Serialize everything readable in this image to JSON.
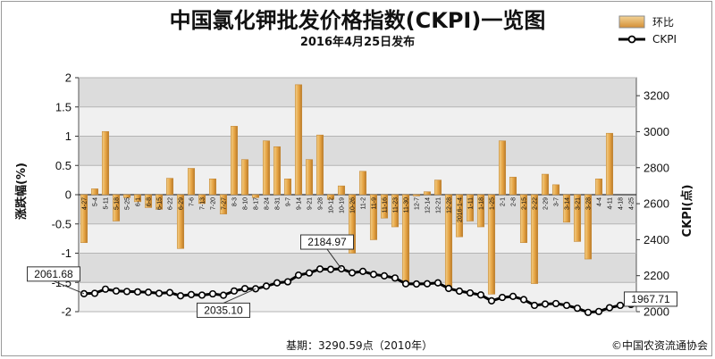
{
  "chart_data": {
    "type": "bar+line",
    "title": "中国氯化钾批发价格指数(CKPI)一览图",
    "subtitle": "2016年4月25日发布",
    "ylabel_left": "涨跌幅(%)",
    "ylabel_right": "CKPI(点)",
    "ylim_left": [
      -2,
      2
    ],
    "ylim_right": [
      2000,
      3300
    ],
    "yticks_left": [
      "2",
      "1.5",
      "1",
      "0.5",
      "0",
      "-0.5",
      "-1",
      "-1.5",
      "-2"
    ],
    "yticks_right": [
      "3200",
      "3000",
      "2800",
      "2600",
      "2400",
      "2200",
      "2000"
    ],
    "legend": [
      {
        "label": "环比",
        "color": "#e0a040"
      },
      {
        "label": "CKPI",
        "color": "#000000"
      }
    ],
    "categories": [
      "4-27",
      "5-4",
      "5-11",
      "5-18",
      "5-25",
      "6-1",
      "6-8",
      "6-15",
      "6-22",
      "6-29",
      "7-6",
      "7-13",
      "7-20",
      "7-27",
      "8-3",
      "8-10",
      "8-17",
      "8-24",
      "8-31",
      "9-7",
      "9-14",
      "9-21",
      "9-28",
      "10-12",
      "10-19",
      "10-26",
      "11-2",
      "11-9",
      "11-16",
      "11-23",
      "11-30",
      "12-7",
      "12-14",
      "12-21",
      "12-28",
      "2016-1-4",
      "1-11",
      "1-18",
      "1-25",
      "2-1",
      "2-8",
      "2-15",
      "2-22",
      "2-29",
      "3-7",
      "3-14",
      "3-21",
      "3-28",
      "4-4",
      "4-11",
      "4-18",
      "4-25"
    ],
    "series": [
      {
        "name": "环比",
        "type": "bar",
        "values": [
          -0.82,
          0.1,
          1.08,
          -0.45,
          -0.05,
          -0.12,
          -0.22,
          -0.25,
          0.28,
          -0.92,
          0.45,
          -0.15,
          0.27,
          -0.33,
          1.17,
          0.6,
          -0.05,
          0.92,
          0.82,
          0.27,
          1.88,
          0.6,
          1.02,
          -0.08,
          0.15,
          -1.0,
          0.4,
          -0.77,
          -0.4,
          -0.55,
          -1.52,
          -0.02,
          0.05,
          0.25,
          -1.62,
          -0.72,
          -0.45,
          -0.55,
          -1.7,
          0.92,
          0.3,
          -0.82,
          -1.52,
          0.35,
          0.17,
          -0.47,
          -0.8,
          -1.1,
          0.27,
          1.05,
          0,
          0
        ]
      },
      {
        "name": "CKPI",
        "type": "line",
        "values": [
          2100,
          2102,
          2125,
          2115,
          2112,
          2110,
          2108,
          2102,
          2106,
          2088,
          2095,
          2092,
          2099,
          2091,
          2115,
          2128,
          2127,
          2142,
          2160,
          2166,
          2203,
          2215,
          2237,
          2235,
          2238,
          2216,
          2224,
          2207,
          2199,
          2187,
          2155,
          2154,
          2155,
          2160,
          2129,
          2114,
          2104,
          2093,
          2060,
          2079,
          2085,
          2067,
          2035,
          2042,
          2045,
          2035,
          2019,
          1996,
          2001,
          2022,
          2035,
          2040
        ]
      }
    ],
    "annotations": [
      {
        "text": "2061.68",
        "series_index": 0
      },
      {
        "text": "2184.97",
        "series_index": 24
      },
      {
        "text": "2035.10",
        "series_index": 16
      },
      {
        "text": "1967.71",
        "series_index": 51
      }
    ],
    "grid": true,
    "legend_position": "top-right"
  },
  "footer": {
    "base": "基期：3290.59点（2010年）",
    "copyright": "©中国农资流通协会"
  }
}
